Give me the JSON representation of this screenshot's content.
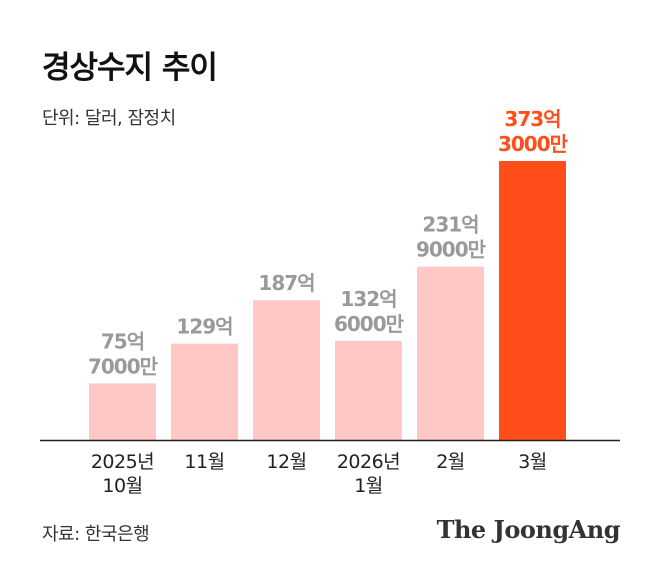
{
  "title": "경상수지 추이",
  "unit_note": "단위: 달러, 잠정치",
  "source": "자료: 한국은행",
  "brand": "The JoongAng",
  "colors": {
    "bar": "#ffc7c5",
    "highlight": "#ff4e1a",
    "value_label": "#9a9a9a",
    "axis": "#222222"
  },
  "chart_data": {
    "type": "bar",
    "categories": [
      [
        "2025년",
        "10월"
      ],
      [
        "11월"
      ],
      [
        "12월"
      ],
      [
        "2026년",
        "1월"
      ],
      [
        "2월"
      ],
      [
        "3월"
      ]
    ],
    "values": [
      7570000000,
      12900000000,
      18700000000,
      13260000000,
      23190000000,
      37330000000
    ],
    "value_labels": [
      [
        "75억",
        "7000만"
      ],
      [
        "129억"
      ],
      [
        "187억"
      ],
      [
        "132억",
        "6000만"
      ],
      [
        "231억",
        "9000만"
      ],
      [
        "373억",
        "3000만"
      ]
    ],
    "highlight_index": 5,
    "ylim": [
      0,
      37330000000
    ],
    "grid": false,
    "legend": "none"
  }
}
